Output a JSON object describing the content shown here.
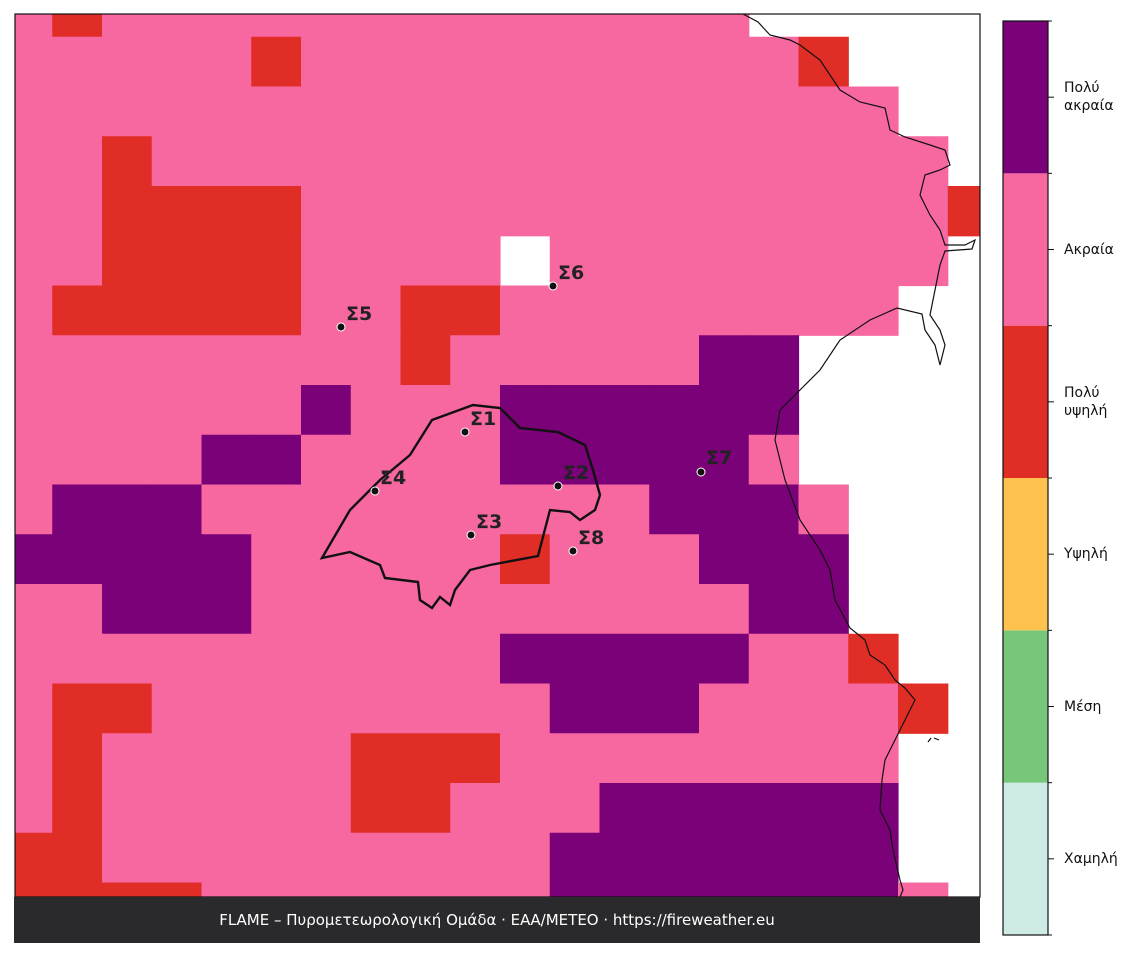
{
  "footer": "FLAME – Πυρομετεωρολογική Ομάδα · ΕΑΑ/METEO · https://fireweather.eu",
  "stations": [
    "Σ1",
    "Σ2",
    "Σ3",
    "Σ4",
    "Σ5",
    "Σ6",
    "Σ7",
    "Σ8"
  ],
  "legend": [
    {
      "label": "Χαμηλή",
      "color": "#cdeae5"
    },
    {
      "label": "Μέση",
      "color": "#78c679"
    },
    {
      "label": "Υψηλή",
      "color": "#fec24f"
    },
    {
      "label": "Πολύ υψηλή",
      "color": "#e02d26"
    },
    {
      "label": "Ακραία",
      "color": "#f768a1"
    },
    {
      "label": "Πολύ ακραία",
      "color": "#7a0177"
    }
  ],
  "grid": [
    [
      4,
      3,
      4,
      4,
      4,
      4,
      4,
      4,
      4,
      4,
      4,
      4,
      4,
      4,
      4,
      null,
      null,
      null,
      null,
      null
    ],
    [
      4,
      4,
      4,
      4,
      4,
      3,
      4,
      4,
      4,
      4,
      4,
      4,
      4,
      4,
      4,
      4,
      3,
      null,
      null,
      null
    ],
    [
      4,
      4,
      4,
      4,
      4,
      4,
      4,
      4,
      4,
      4,
      4,
      4,
      4,
      4,
      4,
      4,
      4,
      4,
      null,
      null
    ],
    [
      4,
      4,
      3,
      4,
      4,
      4,
      4,
      4,
      4,
      4,
      4,
      4,
      4,
      4,
      4,
      4,
      4,
      4,
      4,
      null
    ],
    [
      4,
      4,
      3,
      3,
      3,
      3,
      4,
      4,
      4,
      4,
      4,
      4,
      4,
      4,
      4,
      4,
      4,
      4,
      4,
      3
    ],
    [
      4,
      4,
      3,
      3,
      3,
      3,
      4,
      4,
      4,
      4,
      null,
      4,
      4,
      4,
      4,
      4,
      4,
      4,
      4,
      null
    ],
    [
      4,
      3,
      3,
      3,
      3,
      3,
      4,
      4,
      3,
      3,
      4,
      4,
      4,
      4,
      4,
      4,
      4,
      4,
      null,
      null
    ],
    [
      4,
      4,
      4,
      4,
      4,
      4,
      4,
      4,
      3,
      4,
      4,
      4,
      4,
      4,
      5,
      5,
      null,
      null,
      null,
      null
    ],
    [
      4,
      4,
      4,
      4,
      4,
      4,
      5,
      4,
      4,
      4,
      5,
      5,
      5,
      5,
      5,
      5,
      null,
      null,
      null,
      null
    ],
    [
      4,
      4,
      4,
      4,
      5,
      5,
      4,
      4,
      4,
      4,
      5,
      5,
      5,
      5,
      5,
      4,
      null,
      null,
      null,
      null
    ],
    [
      4,
      5,
      5,
      5,
      4,
      4,
      4,
      4,
      4,
      4,
      4,
      4,
      4,
      5,
      5,
      5,
      4,
      null,
      null,
      null
    ],
    [
      5,
      5,
      5,
      5,
      5,
      4,
      4,
      4,
      4,
      4,
      3,
      4,
      4,
      4,
      5,
      5,
      5,
      null,
      null,
      null
    ],
    [
      4,
      4,
      5,
      5,
      5,
      4,
      4,
      4,
      4,
      4,
      4,
      4,
      4,
      4,
      4,
      5,
      5,
      null,
      null,
      null
    ],
    [
      4,
      4,
      4,
      4,
      4,
      4,
      4,
      4,
      4,
      4,
      5,
      5,
      5,
      5,
      5,
      4,
      4,
      3,
      null,
      null
    ],
    [
      4,
      3,
      3,
      4,
      4,
      4,
      4,
      4,
      4,
      4,
      4,
      5,
      5,
      5,
      4,
      4,
      4,
      4,
      3,
      null
    ],
    [
      4,
      3,
      4,
      4,
      4,
      4,
      4,
      3,
      3,
      3,
      4,
      4,
      4,
      4,
      4,
      4,
      4,
      4,
      null,
      null
    ],
    [
      4,
      3,
      4,
      4,
      4,
      4,
      4,
      3,
      3,
      4,
      4,
      4,
      5,
      5,
      5,
      5,
      5,
      5,
      null,
      null
    ],
    [
      3,
      3,
      4,
      4,
      4,
      4,
      4,
      4,
      4,
      4,
      4,
      5,
      5,
      5,
      5,
      5,
      5,
      5,
      null,
      null
    ],
    [
      3,
      3,
      3,
      3,
      4,
      4,
      4,
      4,
      4,
      4,
      4,
      5,
      5,
      5,
      5,
      5,
      5,
      5,
      4,
      null
    ]
  ]
}
